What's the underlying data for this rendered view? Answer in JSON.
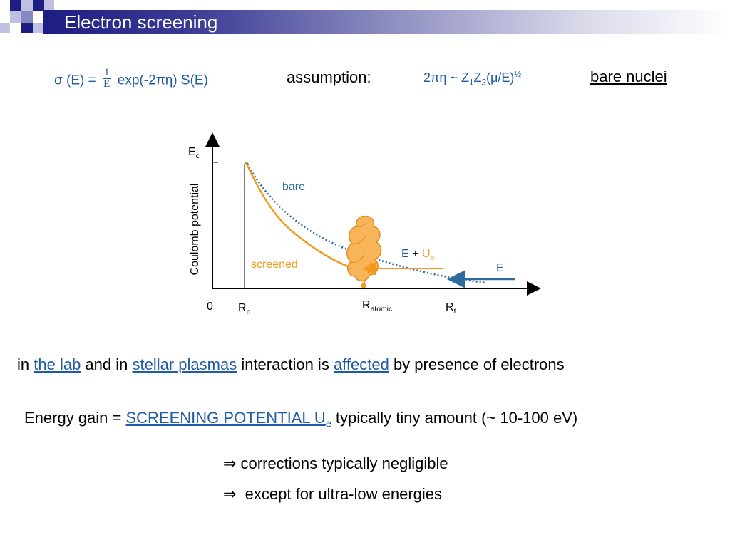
{
  "title": "Electron screening",
  "formula": {
    "sigma": "σ",
    "lhs_rest": " (E) = ",
    "frac_num": "1",
    "frac_den": "E",
    "rhs": " exp(-2πη) S(E)"
  },
  "assumption": {
    "label": "assumption:",
    "expr_prefix": "2πη ~ Z",
    "sub1": "1",
    "z2": "Z",
    "sub2": "2",
    "expr_mid": "(μ/E)",
    "sup_half": "½"
  },
  "bare_nuclei": "bare nuclei",
  "diagram": {
    "ylabel": "Coulomb potential",
    "ec_main": "E",
    "ec_sub": "c",
    "bare": "bare",
    "screened": "screened",
    "eue_e": "E",
    "eue_plus": " + ",
    "eue_u": "U",
    "eue_sub": "e",
    "e_arrow": "E",
    "zero": "0",
    "rn_main": "R",
    "rn_sub": "n",
    "ratomic_main": "R",
    "ratomic_sub": "atomic",
    "rt_main": "R",
    "rt_sub": "t",
    "colors": {
      "bare_curve": "#2e6c9e",
      "screened_curve": "#f39a1e",
      "cloud": "#f8b459",
      "cloud_edge": "#e68a1a",
      "arrow_blue": "#2e6c9e"
    }
  },
  "line1": {
    "pre": "in ",
    "link1": "the lab",
    "mid1": " and in ",
    "link2": "stellar plasmas",
    "mid2": " interaction is ",
    "link3": "affected",
    "post": " by presence of electrons"
  },
  "line2": {
    "pre": "Energy gain = ",
    "link_main": "SCREENING  POTENTIAL  U",
    "link_sub": "e",
    "post": " typically tiny amount (~ 10-100 eV)"
  },
  "line3": {
    "arrow": "⇒",
    "text": " corrections typically negligible"
  },
  "line4": {
    "arrow": "⇒",
    "text": "  except for ultra-low energies"
  },
  "accent_colors": {
    "title_bar": "#1d1d82",
    "link": "#1f5aa6",
    "orange": "#f39a1e"
  }
}
